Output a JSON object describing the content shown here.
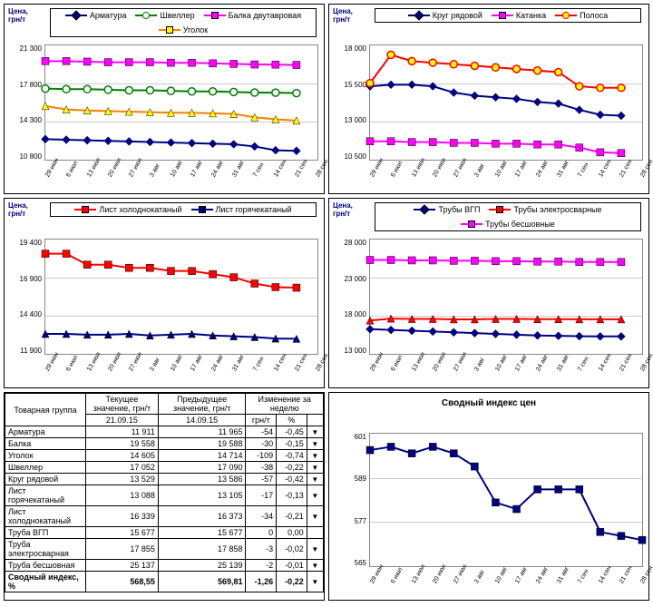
{
  "xlabels": [
    "29 июн",
    "6 июл",
    "13 июл",
    "20 июл",
    "27 июл",
    "3 авг",
    "10 авг",
    "17 авг",
    "24 авг",
    "31 авг",
    "7 сен",
    "14 сен",
    "21 сен",
    "28 сен"
  ],
  "ylabel_text": "Цена, грн/т",
  "charts": [
    {
      "id": "c1",
      "yticks": [
        "21 300",
        "17 800",
        "14 300",
        "10 800"
      ],
      "ylim": [
        10800,
        21300
      ],
      "series": [
        {
          "name": "Арматура",
          "color": "#000080",
          "marker": "diamond",
          "values": [
            12950,
            12900,
            12850,
            12800,
            12750,
            12700,
            12650,
            12600,
            12550,
            12500,
            12300,
            11965,
            11911
          ]
        },
        {
          "name": "Швеллер",
          "color": "#008000",
          "marker": "circle",
          "values": [
            17450,
            17400,
            17400,
            17350,
            17300,
            17300,
            17250,
            17200,
            17200,
            17150,
            17100,
            17090,
            17052
          ]
        },
        {
          "name": "Балка двутавровая",
          "color": "#ff00ff",
          "marker": "square",
          "values": [
            19900,
            19900,
            19850,
            19800,
            19800,
            19800,
            19750,
            19750,
            19700,
            19650,
            19600,
            19588,
            19558
          ]
        },
        {
          "name": "Уголок",
          "color": "#ff8000",
          "marker": "triangle",
          "fill": "#ffff00",
          "values": [
            15900,
            15600,
            15500,
            15450,
            15400,
            15350,
            15300,
            15300,
            15250,
            15200,
            14900,
            14714,
            14605
          ]
        }
      ]
    },
    {
      "id": "c2",
      "yticks": [
        "18 000",
        "15 500",
        "13 000",
        "10 500"
      ],
      "ylim": [
        10500,
        18000
      ],
      "series": [
        {
          "name": "Круг рядовой",
          "color": "#000080",
          "marker": "diamond",
          "values": [
            15400,
            15500,
            15500,
            15400,
            15000,
            14800,
            14700,
            14600,
            14400,
            14300,
            13900,
            13586,
            13529
          ]
        },
        {
          "name": "Катанка",
          "color": "#ff00ff",
          "marker": "square",
          "values": [
            11900,
            11900,
            11850,
            11850,
            11800,
            11800,
            11750,
            11750,
            11700,
            11700,
            11500,
            11200,
            11150
          ]
        },
        {
          "name": "Полоса",
          "color": "#ff0000",
          "marker": "circle",
          "fill": "#ffff00",
          "values": [
            15600,
            17400,
            17000,
            16900,
            16800,
            16700,
            16600,
            16500,
            16400,
            16300,
            15400,
            15300,
            15300
          ]
        }
      ]
    },
    {
      "id": "c3",
      "yticks": [
        "19 400",
        "16 900",
        "14 400",
        "11 900"
      ],
      "ylim": [
        11900,
        19400
      ],
      "series": [
        {
          "name": "Лист холоднокатаный",
          "color": "#ff0000",
          "marker": "square",
          "values": [
            18500,
            18500,
            17800,
            17800,
            17600,
            17600,
            17400,
            17400,
            17200,
            17000,
            16600,
            16373,
            16339
          ]
        },
        {
          "name": "Лист горячекатаный",
          "color": "#000080",
          "marker": "triangle",
          "values": [
            13400,
            13400,
            13350,
            13350,
            13400,
            13300,
            13350,
            13400,
            13300,
            13250,
            13200,
            13105,
            13088
          ]
        }
      ]
    },
    {
      "id": "c4",
      "yticks": [
        "28 000",
        "23 000",
        "18 000",
        "13 000"
      ],
      "ylim": [
        13000,
        28000
      ],
      "series": [
        {
          "name": "Трубы ВГП",
          "color": "#000080",
          "marker": "diamond",
          "values": [
            16600,
            16500,
            16400,
            16300,
            16200,
            16100,
            16000,
            15900,
            15800,
            15750,
            15700,
            15677,
            15677
          ]
        },
        {
          "name": "Трубы электросварные",
          "color": "#ff0000",
          "marker": "triangle",
          "values": [
            17700,
            17950,
            17900,
            17900,
            17850,
            17850,
            17900,
            17900,
            17870,
            17870,
            17860,
            17858,
            17855
          ]
        },
        {
          "name": "Трубы бесшовные",
          "color": "#ff00ff",
          "marker": "square",
          "values": [
            25400,
            25400,
            25350,
            25350,
            25300,
            25300,
            25250,
            25250,
            25200,
            25200,
            25150,
            25139,
            25137
          ]
        }
      ]
    },
    {
      "id": "c5",
      "title": "Сводный индекс цен",
      "yticks": [
        "601",
        "589",
        "577",
        "565"
      ],
      "ylim": [
        565,
        601
      ],
      "no_ylabel": true,
      "series": [
        {
          "name": "Индекс",
          "color": "#000080",
          "marker": "square",
          "fill": "#000080",
          "values": [
            596,
            597,
            595,
            597,
            595,
            591,
            580,
            578,
            584,
            584,
            584,
            571,
            569.81,
            568.55
          ]
        }
      ]
    }
  ],
  "table": {
    "headers": {
      "group": "Товарная группа",
      "current": "Текущее значение, грн/т",
      "current_date": "21.09.15",
      "prev": "Предыдущее значение, грн/т",
      "prev_date": "14.09.15",
      "change": "Изменение за неделю",
      "change_abs": "грн/т",
      "change_pct": "%"
    },
    "rows": [
      {
        "name": "Арматура",
        "cur": "11 911",
        "prev": "11 965",
        "d": "-54",
        "p": "-0,45",
        "arrow": true
      },
      {
        "name": "Балка",
        "cur": "19 558",
        "prev": "19 588",
        "d": "-30",
        "p": "-0,15",
        "arrow": true
      },
      {
        "name": "Уголок",
        "cur": "14 605",
        "prev": "14 714",
        "d": "-109",
        "p": "-0,74",
        "arrow": true
      },
      {
        "name": "Швеллер",
        "cur": "17 052",
        "prev": "17 090",
        "d": "-38",
        "p": "-0,22",
        "arrow": true
      },
      {
        "name": "Круг рядовой",
        "cur": "13 529",
        "prev": "13 586",
        "d": "-57",
        "p": "-0,42",
        "arrow": true
      },
      {
        "name": "Лист горячекатаный",
        "cur": "13 088",
        "prev": "13 105",
        "d": "-17",
        "p": "-0,13",
        "arrow": true
      },
      {
        "name": "Лист холоднокатаный",
        "cur": "16 339",
        "prev": "16 373",
        "d": "-34",
        "p": "-0,21",
        "arrow": true
      },
      {
        "name": "Труба ВГП",
        "cur": "15 677",
        "prev": "15 677",
        "d": "0",
        "p": "0,00",
        "arrow": false
      },
      {
        "name": "Труба электросварная",
        "cur": "17 855",
        "prev": "17 858",
        "d": "-3",
        "p": "-0,02",
        "arrow": true
      },
      {
        "name": "Труба бесшовная",
        "cur": "25 137",
        "prev": "25 139",
        "d": "-2",
        "p": "-0,01",
        "arrow": true
      }
    ],
    "summary": {
      "name": "Сводный индекс, %",
      "cur": "568,55",
      "prev": "569,81",
      "d": "-1,26",
      "p": "-0,22",
      "arrow": true
    }
  }
}
